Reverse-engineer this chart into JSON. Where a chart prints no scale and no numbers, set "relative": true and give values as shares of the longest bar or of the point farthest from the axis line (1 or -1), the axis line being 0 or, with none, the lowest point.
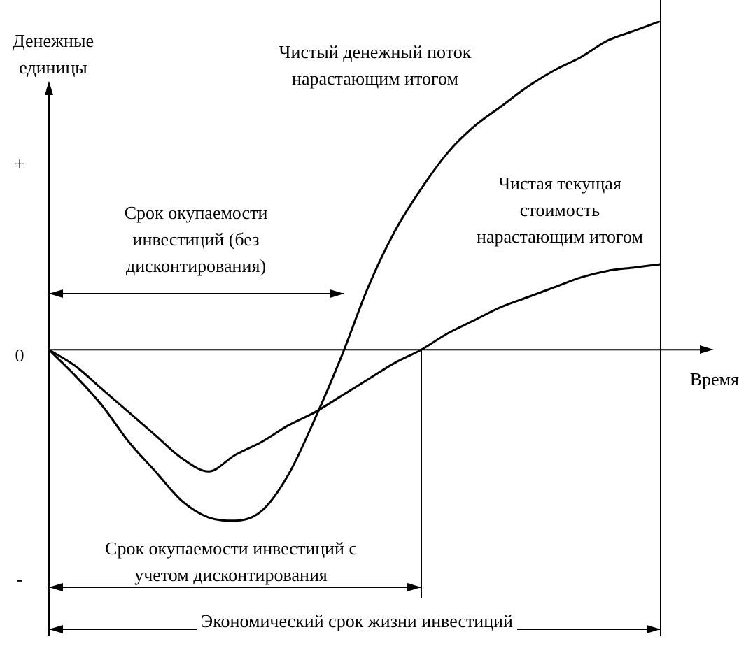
{
  "chart_data": {
    "type": "line",
    "relative": true,
    "ylabel": "Денежные единицы",
    "xlabel": "Время",
    "categories": [
      null,
      null,
      null,
      null,
      null,
      null,
      null,
      null,
      null,
      null,
      null,
      null,
      null,
      null,
      null,
      null,
      null,
      null,
      null,
      null,
      null,
      null,
      null,
      null
    ],
    "series": [
      {
        "name": "Чистый денежный поток нарастающим итогом",
        "color": "#000000",
        "values": [
          0,
          -0.08,
          -0.17,
          -0.28,
          -0.37,
          -0.46,
          -0.51,
          -0.52,
          -0.49,
          -0.38,
          -0.21,
          -0.02,
          0.19,
          0.36,
          0.49,
          0.6,
          0.68,
          0.74,
          0.8,
          0.85,
          0.89,
          0.94,
          0.97,
          1
        ]
      },
      {
        "name": "Чистая текущая стоимость нарастающим итогом",
        "color": "#000000",
        "values": [
          0,
          -0.05,
          -0.12,
          -0.19,
          -0.26,
          -0.33,
          -0.37,
          -0.32,
          -0.28,
          -0.23,
          -0.19,
          -0.14,
          -0.09,
          -0.04,
          0,
          0.05,
          0.09,
          0.13,
          0.16,
          0.19,
          0.22,
          0.24,
          0.25,
          0.26
        ]
      }
    ],
    "annotations": [
      "+",
      "0",
      "-",
      "Срок окупаемости инвестиций (без дисконтирования)",
      "Срок окупаемости инвестиций с учетом дисконтирования",
      "Экономический срок жизни инвестиций"
    ]
  }
}
